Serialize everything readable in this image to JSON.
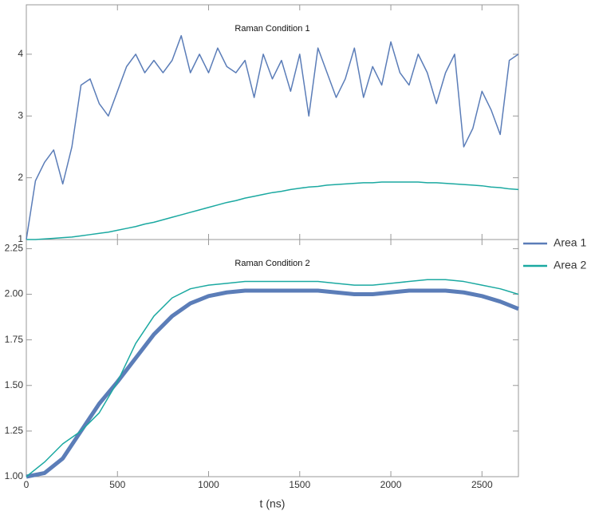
{
  "chart_data": [
    {
      "type": "line",
      "title": "Raman Condition 1",
      "x": [
        0,
        50,
        100,
        150,
        200,
        250,
        300,
        350,
        400,
        450,
        500,
        550,
        600,
        650,
        700,
        750,
        800,
        850,
        900,
        950,
        1000,
        1050,
        1100,
        1150,
        1200,
        1250,
        1300,
        1350,
        1400,
        1450,
        1500,
        1550,
        1600,
        1650,
        1700,
        1750,
        1800,
        1850,
        1900,
        1950,
        2000,
        2050,
        2100,
        2150,
        2200,
        2250,
        2300,
        2350,
        2400,
        2450,
        2500,
        2550,
        2600,
        2650,
        2700
      ],
      "series": [
        {
          "name": "Area 1",
          "color": "#5b7db8",
          "values": [
            1.0,
            1.95,
            2.25,
            2.45,
            1.9,
            2.5,
            3.5,
            3.6,
            3.2,
            3.0,
            3.4,
            3.8,
            4.0,
            3.7,
            3.9,
            3.7,
            3.9,
            4.3,
            3.7,
            4.0,
            3.7,
            4.1,
            3.8,
            3.7,
            3.9,
            3.3,
            4.0,
            3.6,
            3.9,
            3.4,
            4.0,
            3.0,
            4.1,
            3.7,
            3.3,
            3.6,
            4.1,
            3.3,
            3.8,
            3.5,
            4.2,
            3.7,
            3.5,
            4.0,
            3.7,
            3.2,
            3.7,
            4.0,
            2.5,
            2.8,
            3.4,
            3.1,
            2.7,
            3.9,
            4.0
          ]
        },
        {
          "name": "Area 2",
          "color": "#1ba9a1",
          "values": [
            1.0,
            1.0,
            1.01,
            1.02,
            1.03,
            1.04,
            1.06,
            1.08,
            1.1,
            1.12,
            1.15,
            1.18,
            1.21,
            1.25,
            1.28,
            1.32,
            1.36,
            1.4,
            1.44,
            1.48,
            1.52,
            1.56,
            1.6,
            1.63,
            1.67,
            1.7,
            1.73,
            1.76,
            1.78,
            1.81,
            1.83,
            1.85,
            1.86,
            1.88,
            1.89,
            1.9,
            1.91,
            1.92,
            1.92,
            1.93,
            1.93,
            1.93,
            1.93,
            1.93,
            1.92,
            1.92,
            1.91,
            1.9,
            1.89,
            1.88,
            1.87,
            1.85,
            1.84,
            1.82,
            1.81
          ]
        }
      ],
      "xlim": [
        0,
        2700
      ],
      "xticks": [
        0,
        500,
        1000,
        1500,
        2000,
        2500
      ],
      "ylim": [
        1,
        4.8
      ],
      "yticks": [
        1,
        2,
        3,
        4
      ]
    },
    {
      "type": "line",
      "title": "Raman Condition 2",
      "xlabel": "t (ns)",
      "x": [
        0,
        100,
        200,
        300,
        400,
        500,
        600,
        700,
        800,
        900,
        1000,
        1100,
        1200,
        1300,
        1400,
        1500,
        1600,
        1700,
        1800,
        1900,
        2000,
        2100,
        2200,
        2300,
        2400,
        2500,
        2600,
        2700
      ],
      "series": [
        {
          "name": "Area 1",
          "color": "#5b7db8",
          "width": 5,
          "values": [
            1.0,
            1.02,
            1.1,
            1.25,
            1.4,
            1.52,
            1.65,
            1.78,
            1.88,
            1.95,
            1.99,
            2.01,
            2.02,
            2.02,
            2.02,
            2.02,
            2.02,
            2.01,
            2.0,
            2.0,
            2.01,
            2.02,
            2.02,
            2.02,
            2.01,
            1.99,
            1.96,
            1.92
          ]
        },
        {
          "name": "Area 2",
          "color": "#1ba9a1",
          "width": 1.5,
          "values": [
            1.0,
            1.08,
            1.18,
            1.25,
            1.35,
            1.52,
            1.73,
            1.88,
            1.98,
            2.03,
            2.05,
            2.06,
            2.07,
            2.07,
            2.07,
            2.07,
            2.07,
            2.06,
            2.05,
            2.05,
            2.06,
            2.07,
            2.08,
            2.08,
            2.07,
            2.05,
            2.03,
            2.0
          ]
        }
      ],
      "xlim": [
        0,
        2700
      ],
      "xticks": [
        0,
        500,
        1000,
        1500,
        2000,
        2500
      ],
      "ylim": [
        1,
        2.3
      ],
      "yticks": [
        {
          "value": 1,
          "label": "1.00"
        },
        1.25,
        {
          "value": 1.5,
          "label": "1.50"
        },
        1.75,
        {
          "value": 2,
          "label": "2.00"
        },
        2.25
      ]
    }
  ]
}
